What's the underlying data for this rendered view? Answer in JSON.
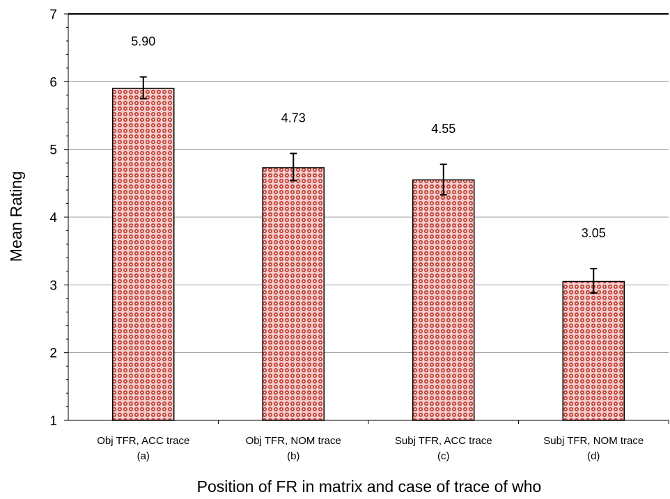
{
  "chart_data": {
    "type": "bar",
    "title": "",
    "xlabel": "Position of FR in matrix and case of trace of who",
    "ylabel": "Mean Rating",
    "ylim": [
      1,
      7
    ],
    "yticks": [
      1,
      2,
      3,
      4,
      5,
      6,
      7
    ],
    "grid": true,
    "categories": [
      {
        "line1": "Obj TFR, ACC trace",
        "line2": "(a)"
      },
      {
        "line1": "Obj TFR, NOM trace",
        "line2": "(b)"
      },
      {
        "line1": "Subj TFR, ACC trace",
        "line2": "(c)"
      },
      {
        "line1": "Subj TFR, NOM trace",
        "line2": "(d)"
      }
    ],
    "values": [
      5.9,
      4.73,
      4.55,
      3.05
    ],
    "value_labels": [
      "5.90",
      "4.73",
      "4.55",
      "3.05"
    ],
    "error_bars": [
      {
        "low": 5.75,
        "high": 6.07
      },
      {
        "low": 4.54,
        "high": 4.94
      },
      {
        "low": 4.33,
        "high": 4.78
      },
      {
        "low": 2.88,
        "high": 3.24
      }
    ],
    "colors": {
      "bar_fill": "#f2cccc",
      "bar_dot": "#c0392b",
      "bar_stroke": "#000000",
      "grid": "#9a9a9a"
    }
  }
}
